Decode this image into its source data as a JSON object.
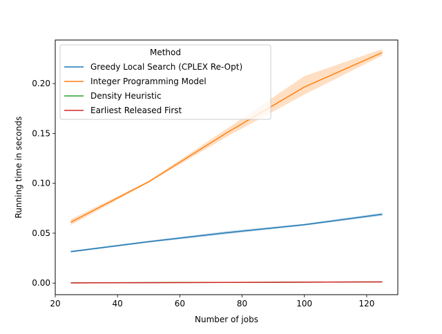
{
  "chart_data": {
    "type": "line",
    "xlabel": "Number of jobs",
    "ylabel": "Running time in seconds",
    "xlim": [
      20,
      130
    ],
    "ylim": [
      -0.0116,
      0.2436
    ],
    "xticks": [
      20,
      40,
      60,
      80,
      100,
      120
    ],
    "xtick_labels": [
      "20",
      "40",
      "60",
      "80",
      "100",
      "120"
    ],
    "yticks": [
      0.0,
      0.05,
      0.1,
      0.15,
      0.2
    ],
    "ytick_labels": [
      "0.00",
      "0.05",
      "0.10",
      "0.15",
      "0.20"
    ],
    "grid": false,
    "legend": {
      "title": "Method",
      "placement": "upper-left"
    },
    "x": [
      25,
      50,
      75,
      100,
      125
    ],
    "series": [
      {
        "name": "Greedy Local Search (CPLEX Re-Opt)",
        "color": "#1f77b4",
        "values": [
          0.0315,
          0.0415,
          0.0505,
          0.0585,
          0.069
        ],
        "lower": [
          0.0305,
          0.0405,
          0.049,
          0.0575,
          0.0675
        ],
        "upper": [
          0.0325,
          0.0425,
          0.052,
          0.0595,
          0.0705
        ]
      },
      {
        "name": "Integer Programming Model",
        "color": "#ff7f0e",
        "values": [
          0.061,
          0.1015,
          0.1505,
          0.1965,
          0.231
        ],
        "lower": [
          0.058,
          0.1005,
          0.1465,
          0.189,
          0.228
        ],
        "upper": [
          0.064,
          0.1025,
          0.1545,
          0.2075,
          0.2345
        ]
      },
      {
        "name": "Density Heuristic",
        "color": "#2ca02c",
        "values": [
          0.0003,
          0.0005,
          0.0007,
          0.0009,
          0.0012
        ],
        "lower": [
          0.0002,
          0.0004,
          0.0006,
          0.0008,
          0.001
        ],
        "upper": [
          0.0004,
          0.0006,
          0.0008,
          0.001,
          0.0014
        ]
      },
      {
        "name": "Earliest Released First",
        "color": "#d62728",
        "values": [
          0.0002,
          0.0004,
          0.0007,
          0.0009,
          0.0012
        ],
        "lower": [
          0.0001,
          0.0003,
          0.0006,
          0.0008,
          0.001
        ],
        "upper": [
          0.0003,
          0.0005,
          0.0008,
          0.001,
          0.0014
        ]
      }
    ]
  }
}
